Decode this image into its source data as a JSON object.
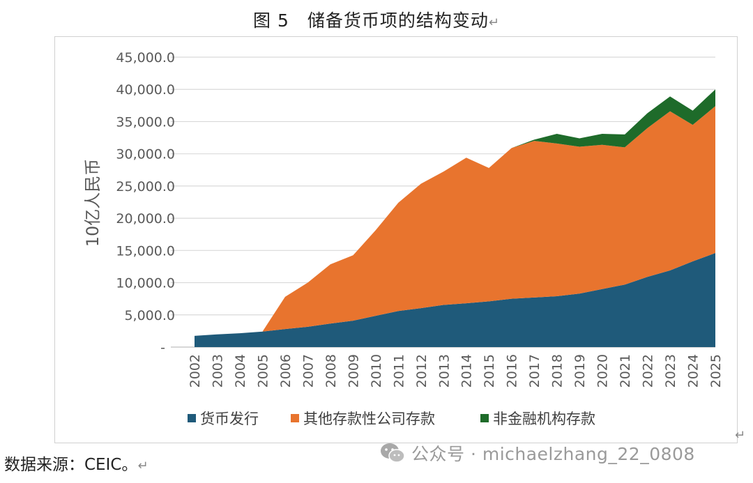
{
  "page": {
    "title": "图 5　储备货币项的结构变动",
    "title_mark": "↵",
    "source": "数据来源：CEIC。",
    "source_mark": "↵",
    "frame_mark": "↵",
    "watermark_text": "公众号 · michaelzhang_22_0808",
    "watermark_icon": "wechat-icon"
  },
  "colors": {
    "issuance": "#1f5a7a",
    "other_deposits": "#e8742e",
    "nonfinancial": "#1e6b2a",
    "grid": "#d9d9d9",
    "axis": "#bfbfbf"
  },
  "chart_data": {
    "type": "area",
    "stacked": true,
    "title": "",
    "xlabel": "",
    "ylabel": "10亿人民币",
    "x": [
      "2002",
      "2003",
      "2004",
      "2005",
      "2006",
      "2007",
      "2008",
      "2009",
      "2010",
      "2011",
      "2012",
      "2013",
      "2014",
      "2015",
      "2016",
      "2017",
      "2018",
      "2019",
      "2020",
      "2021",
      "2022",
      "2023",
      "2024",
      "2025"
    ],
    "yticks": [
      "-",
      "5,000.0",
      "10,000.0",
      "15,000.0",
      "20,000.0",
      "25,000.0",
      "30,000.0",
      "35,000.0",
      "40,000.0",
      "45,000.0"
    ],
    "ylim": [
      0,
      45000
    ],
    "grid": true,
    "legend_position": "bottom",
    "series": [
      {
        "name": "货币发行",
        "values": [
          1750,
          1970,
          2150,
          2400,
          2800,
          3150,
          3650,
          4100,
          4850,
          5600,
          6050,
          6550,
          6800,
          7100,
          7500,
          7700,
          7900,
          8300,
          9000,
          9700,
          10900,
          11900,
          13300,
          14600
        ]
      },
      {
        "name": "其他存款性公司存款",
        "values": [
          0,
          0,
          0,
          0,
          5000,
          6850,
          9200,
          10150,
          13300,
          16800,
          19300,
          20700,
          22600,
          20700,
          23400,
          24300,
          23700,
          22800,
          22400,
          21300,
          23100,
          24700,
          21200,
          22800
        ]
      },
      {
        "name": "非金融机构存款",
        "values": [
          0,
          0,
          0,
          0,
          0,
          0,
          0,
          0,
          0,
          0,
          0,
          0,
          0,
          0,
          0,
          200,
          1500,
          1300,
          1700,
          2000,
          2300,
          2300,
          2200,
          2600
        ]
      }
    ]
  }
}
